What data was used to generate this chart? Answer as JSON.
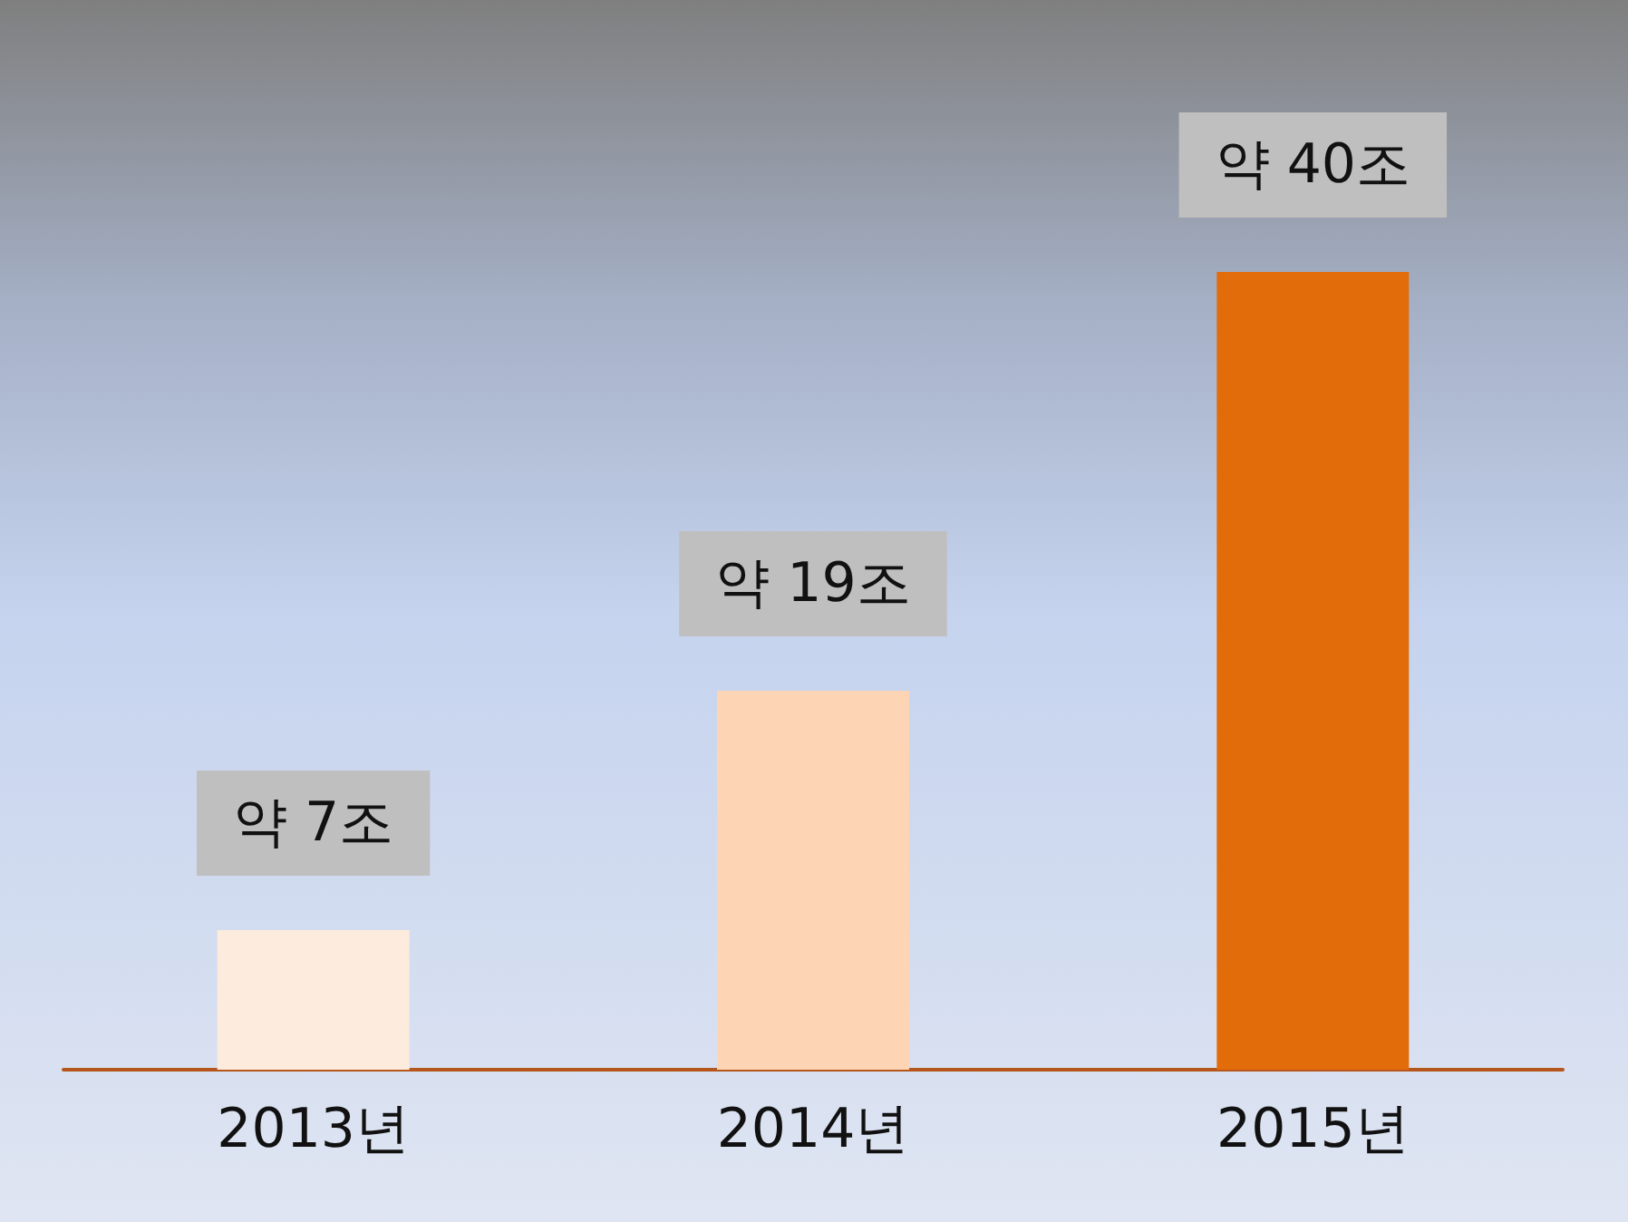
{
  "chart_data": {
    "type": "bar",
    "categories": [
      "2013년",
      "2014년",
      "2015년"
    ],
    "values": [
      7,
      19,
      40
    ],
    "colors": [
      "#fdebdd",
      "#fdd5b4",
      "#e36c0a"
    ],
    "value_labels": [
      "약 7조",
      "약 19조",
      "약 40조"
    ]
  }
}
